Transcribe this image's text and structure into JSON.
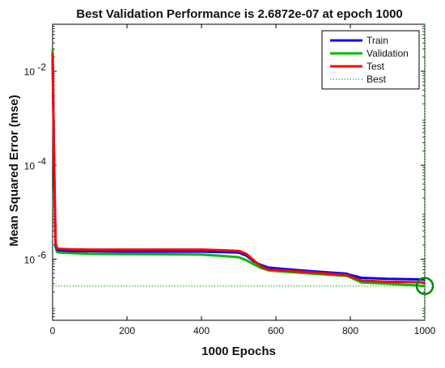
{
  "chart_data": {
    "type": "line",
    "title": "Best Validation Performance is 2.6872e-07 at epoch 1000",
    "xlabel": "1000 Epochs",
    "ylabel": "Mean Squared Error  (mse)",
    "xlim": [
      0,
      1000
    ],
    "ylim": [
      5e-08,
      0.1
    ],
    "yscale": "log",
    "grid": false,
    "legend_position": "top-right",
    "x_ticks": [
      0,
      200,
      400,
      600,
      800,
      1000
    ],
    "x_tick_labels": [
      "0",
      "200",
      "400",
      "600",
      "800",
      "1000"
    ],
    "y_ticks": [
      1e-06,
      0.0001,
      0.01
    ],
    "y_tick_labels": [
      {
        "base": "10",
        "exp": "-6"
      },
      {
        "base": "10",
        "exp": "-4"
      },
      {
        "base": "10",
        "exp": "-2"
      }
    ],
    "series": [
      {
        "name": "Train",
        "color": "#0000ff",
        "style": "solid",
        "x": [
          0,
          1,
          3,
          5,
          8,
          12,
          20,
          50,
          100,
          200,
          300,
          400,
          450,
          500,
          520,
          540,
          560,
          580,
          600,
          700,
          790,
          800,
          830,
          900,
          1000
        ],
        "y": [
          0.02,
          0.005,
          0.0003,
          4e-05,
          2e-06,
          1.6e-06,
          1.55e-06,
          1.5e-06,
          1.48e-06,
          1.45e-06,
          1.45e-06,
          1.45e-06,
          1.42e-06,
          1.38e-06,
          1.2e-06,
          9e-07,
          7.5e-07,
          6.6e-07,
          6.4e-07,
          5.5e-07,
          4.9e-07,
          4.6e-07,
          4e-07,
          3.8e-07,
          3.7e-07
        ]
      },
      {
        "name": "Validation",
        "color": "#00bb00",
        "style": "solid",
        "x": [
          0,
          1,
          3,
          5,
          8,
          12,
          20,
          50,
          100,
          200,
          300,
          400,
          450,
          500,
          520,
          540,
          560,
          580,
          600,
          700,
          790,
          800,
          830,
          900,
          1000
        ],
        "y": [
          0.03,
          0.006,
          0.0004,
          4e-05,
          1.8e-06,
          1.42e-06,
          1.38e-06,
          1.35e-06,
          1.3e-06,
          1.28e-06,
          1.27e-06,
          1.25e-06,
          1.18e-06,
          1.1e-06,
          9.5e-07,
          7.8e-07,
          6.5e-07,
          5.8e-07,
          5.6e-07,
          4.9e-07,
          4.4e-07,
          4.1e-07,
          3.2e-07,
          3e-07,
          2.69e-07
        ]
      },
      {
        "name": "Test",
        "color": "#ff0000",
        "style": "solid",
        "x": [
          0,
          1,
          3,
          5,
          8,
          12,
          20,
          50,
          100,
          200,
          300,
          400,
          450,
          500,
          520,
          540,
          560,
          580,
          600,
          700,
          790,
          800,
          830,
          900,
          1000
        ],
        "y": [
          0.025,
          0.005,
          0.0003,
          3e-05,
          2.2e-06,
          1.7e-06,
          1.65e-06,
          1.62e-06,
          1.6e-06,
          1.6e-06,
          1.6e-06,
          1.6e-06,
          1.55e-06,
          1.5e-06,
          1.3e-06,
          9.5e-07,
          7e-07,
          6e-07,
          5.9e-07,
          5.2e-07,
          4.6e-07,
          4.3e-07,
          3.5e-07,
          3.3e-07,
          3.2e-07
        ]
      },
      {
        "name": "Best",
        "color": "#00aa00",
        "style": "dotted"
      }
    ],
    "best_point": {
      "epoch": 1000,
      "value": 2.6872e-07
    }
  }
}
